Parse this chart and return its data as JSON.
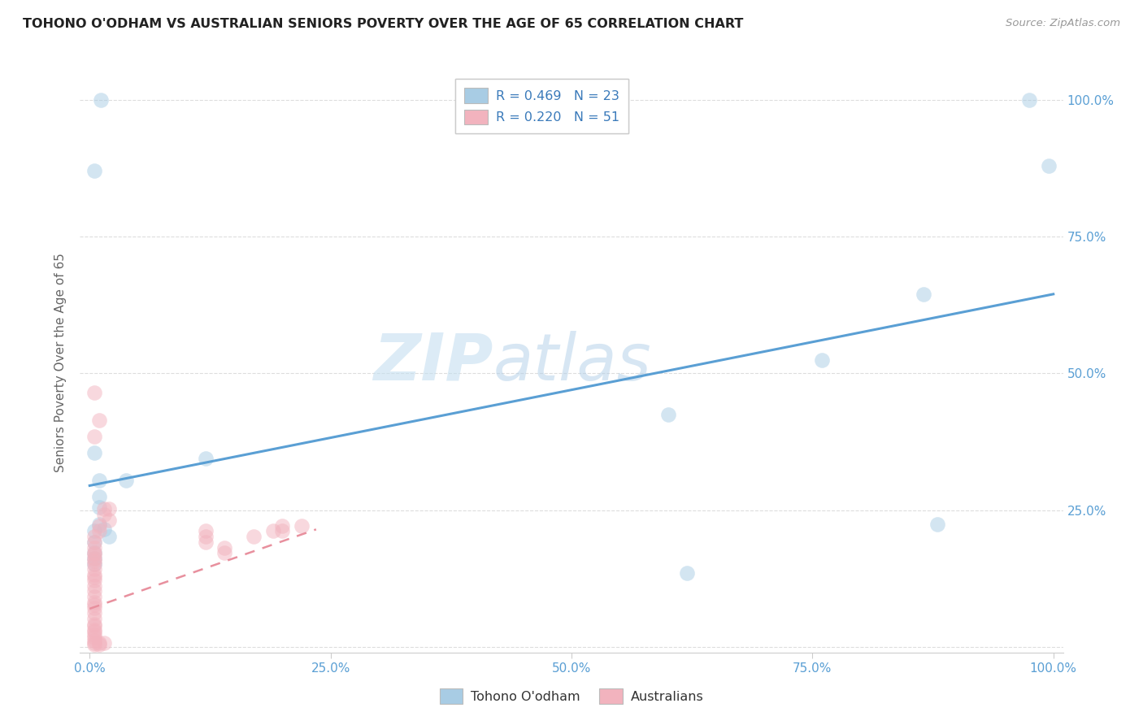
{
  "title": "TOHONO O'ODHAM VS AUSTRALIAN SENIORS POVERTY OVER THE AGE OF 65 CORRELATION CHART",
  "source": "Source: ZipAtlas.com",
  "ylabel": "Seniors Poverty Over the Age of 65",
  "watermark_zip": "ZIP",
  "watermark_atlas": "atlas",
  "legend_r1": "R = 0.469",
  "legend_n1": "N = 23",
  "legend_r2": "R = 0.220",
  "legend_n2": "N = 51",
  "blue_color": "#a8cce4",
  "pink_color": "#f2b3be",
  "blue_fill": "#a8cce4",
  "pink_fill": "#f2b3be",
  "blue_line_color": "#5a9fd4",
  "pink_line_color": "#e8909e",
  "blue_scatter": [
    [
      0.012,
      1.0
    ],
    [
      0.005,
      0.87
    ],
    [
      0.975,
      1.0
    ],
    [
      0.995,
      0.88
    ],
    [
      0.865,
      0.645
    ],
    [
      0.76,
      0.525
    ],
    [
      0.6,
      0.425
    ],
    [
      0.88,
      0.225
    ],
    [
      0.62,
      0.135
    ],
    [
      0.038,
      0.305
    ],
    [
      0.01,
      0.305
    ],
    [
      0.005,
      0.355
    ],
    [
      0.01,
      0.275
    ],
    [
      0.01,
      0.255
    ],
    [
      0.01,
      0.225
    ],
    [
      0.015,
      0.215
    ],
    [
      0.005,
      0.212
    ],
    [
      0.02,
      0.202
    ],
    [
      0.005,
      0.192
    ],
    [
      0.12,
      0.345
    ],
    [
      0.005,
      0.172
    ],
    [
      0.005,
      0.162
    ],
    [
      0.005,
      0.152
    ]
  ],
  "pink_scatter": [
    [
      0.005,
      0.465
    ],
    [
      0.01,
      0.415
    ],
    [
      0.005,
      0.385
    ],
    [
      0.015,
      0.252
    ],
    [
      0.02,
      0.252
    ],
    [
      0.015,
      0.242
    ],
    [
      0.02,
      0.232
    ],
    [
      0.01,
      0.222
    ],
    [
      0.01,
      0.212
    ],
    [
      0.005,
      0.202
    ],
    [
      0.005,
      0.192
    ],
    [
      0.005,
      0.182
    ],
    [
      0.005,
      0.172
    ],
    [
      0.005,
      0.17
    ],
    [
      0.005,
      0.162
    ],
    [
      0.005,
      0.158
    ],
    [
      0.005,
      0.152
    ],
    [
      0.005,
      0.142
    ],
    [
      0.005,
      0.132
    ],
    [
      0.005,
      0.128
    ],
    [
      0.005,
      0.122
    ],
    [
      0.005,
      0.112
    ],
    [
      0.005,
      0.102
    ],
    [
      0.005,
      0.092
    ],
    [
      0.005,
      0.082
    ],
    [
      0.005,
      0.078
    ],
    [
      0.005,
      0.072
    ],
    [
      0.005,
      0.062
    ],
    [
      0.005,
      0.052
    ],
    [
      0.005,
      0.042
    ],
    [
      0.005,
      0.038
    ],
    [
      0.005,
      0.032
    ],
    [
      0.005,
      0.028
    ],
    [
      0.005,
      0.022
    ],
    [
      0.005,
      0.018
    ],
    [
      0.005,
      0.012
    ],
    [
      0.005,
      0.008
    ],
    [
      0.01,
      0.008
    ],
    [
      0.015,
      0.008
    ],
    [
      0.01,
      0.004
    ],
    [
      0.005,
      0.004
    ],
    [
      0.12,
      0.212
    ],
    [
      0.12,
      0.202
    ],
    [
      0.12,
      0.192
    ],
    [
      0.14,
      0.182
    ],
    [
      0.14,
      0.172
    ],
    [
      0.17,
      0.202
    ],
    [
      0.19,
      0.212
    ],
    [
      0.2,
      0.212
    ],
    [
      0.2,
      0.222
    ],
    [
      0.22,
      0.222
    ]
  ],
  "xlim": [
    -0.01,
    1.01
  ],
  "ylim": [
    -0.01,
    1.05
  ],
  "xtick_vals": [
    0.0,
    0.25,
    0.5,
    0.75,
    1.0
  ],
  "xtick_labels": [
    "0.0%",
    "25.0%",
    "50.0%",
    "75.0%",
    "100.0%"
  ],
  "ytick_vals": [
    0.0,
    0.25,
    0.5,
    0.75,
    1.0
  ],
  "ytick_labels_right": [
    "",
    "25.0%",
    "50.0%",
    "75.0%",
    "100.0%"
  ],
  "blue_line_x": [
    0.0,
    1.0
  ],
  "blue_line_y": [
    0.295,
    0.645
  ],
  "pink_line_x": [
    0.0,
    0.235
  ],
  "pink_line_y": [
    0.07,
    0.215
  ],
  "marker_size": 180,
  "marker_alpha": 0.5,
  "grid_color": "#dddddd",
  "tick_color": "#5a9fd4",
  "label_color": "#666666",
  "source_color": "#999999",
  "title_color": "#222222"
}
